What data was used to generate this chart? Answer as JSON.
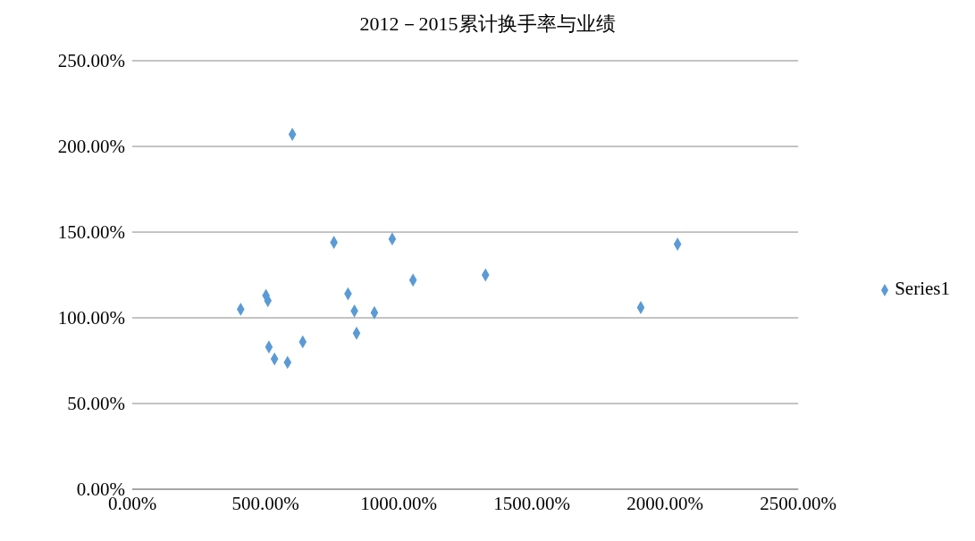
{
  "chart_data": {
    "type": "scatter",
    "title": "2012－2015累计换手率与业绩",
    "x": [
      407,
      502,
      509,
      513,
      534,
      583,
      601,
      640,
      757,
      810,
      834,
      842,
      909,
      976,
      1054,
      1326,
      1909,
      2047
    ],
    "series": [
      {
        "name": "Series1",
        "color": "#5b9bd5",
        "values": [
          105,
          113,
          110,
          83,
          76,
          74,
          207,
          86,
          144,
          114,
          104,
          91,
          103,
          146,
          122,
          125,
          106,
          143
        ]
      }
    ],
    "xlim": [
      0,
      2500
    ],
    "xticks": [
      {
        "value": 0,
        "label": "0.00%"
      },
      {
        "value": 500,
        "label": "500.00%"
      },
      {
        "value": 1000,
        "label": "1000.00%"
      },
      {
        "value": 1500,
        "label": "1500.00%"
      },
      {
        "value": 2000,
        "label": "2000.00%"
      },
      {
        "value": 2500,
        "label": "2500.00%"
      }
    ],
    "ylim": [
      0,
      250
    ],
    "yticks": [
      {
        "value": 0,
        "label": "0.00%"
      },
      {
        "value": 50,
        "label": "50.00%"
      },
      {
        "value": 100,
        "label": "100.00%"
      },
      {
        "value": 150,
        "label": "150.00%"
      },
      {
        "value": 200,
        "label": "200.00%"
      },
      {
        "value": 250,
        "label": "250.00%"
      }
    ],
    "grid": "y",
    "legend": "right",
    "marker": "diamond"
  }
}
